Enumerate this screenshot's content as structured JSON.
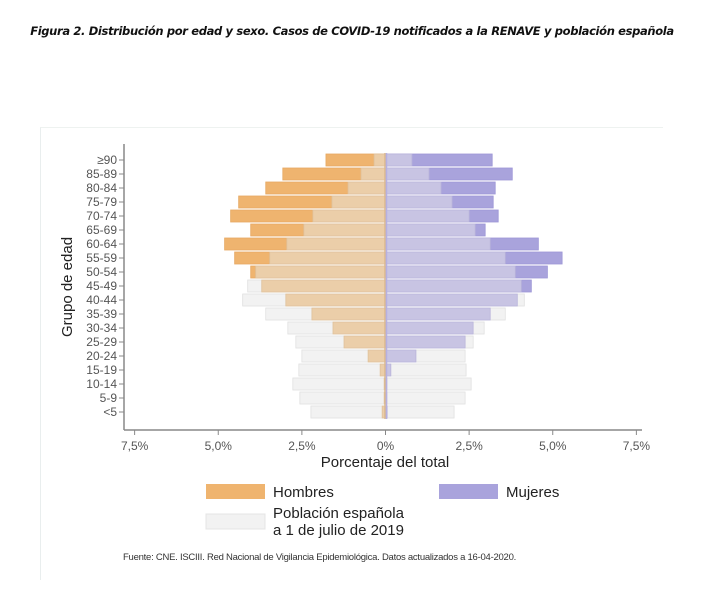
{
  "figure_title": "Figura 2. Distribución por edad y sexo. Casos de COVID-19 notificados a la RENAVE y población española",
  "source_note": "Fuente: CNE. ISCIII. Red Nacional de Vigilancia Epidemiológica. Datos actualizados a 16-04-2020.",
  "colors": {
    "hombres_casos": "#efb46f",
    "hombres_overlap": "#ebcea9",
    "mujeres_casos": "#a9a3dc",
    "mujeres_overlap": "#c8c4e3",
    "poblacion": "#f2f2f2",
    "axis": "#888888"
  },
  "chart_data": {
    "type": "bar",
    "subtype": "population-pyramid",
    "title": "",
    "xlabel": "Porcentaje del total",
    "ylabel": "Grupo de edad",
    "xlim": [
      -7.5,
      7.5
    ],
    "xticks": [
      -7.5,
      -5.0,
      -2.5,
      0,
      2.5,
      5.0,
      7.5
    ],
    "xtick_labels": [
      "7,5%",
      "5,0%",
      "2,5%",
      "0%",
      "2,5%",
      "5,0%",
      "7,5%"
    ],
    "grid": false,
    "categories": [
      "≥90",
      "85-89",
      "80-84",
      "75-79",
      "70-74",
      "65-69",
      "60-64",
      "55-59",
      "50-54",
      "45-49",
      "40-44",
      "35-39",
      "30-34",
      "25-29",
      "20-24",
      "15-19",
      "10-14",
      "5-9",
      "<5"
    ],
    "series": [
      {
        "name": "Hombres (casos COVID-19)",
        "side": "left",
        "values": [
          1.78,
          3.07,
          3.58,
          4.39,
          4.63,
          4.03,
          4.81,
          4.51,
          4.03,
          3.7,
          2.98,
          2.2,
          1.57,
          1.24,
          0.52,
          0.16,
          0.04,
          0.04,
          0.1
        ]
      },
      {
        "name": "Hombres (población española)",
        "side": "left",
        "values": [
          0.34,
          0.73,
          1.12,
          1.6,
          2.17,
          2.44,
          2.95,
          3.46,
          3.88,
          4.12,
          4.27,
          3.58,
          2.92,
          2.68,
          2.5,
          2.59,
          2.77,
          2.56,
          2.23
        ]
      },
      {
        "name": "Mujeres (casos COVID-19)",
        "side": "right",
        "values": [
          3.19,
          3.79,
          3.28,
          3.22,
          3.37,
          2.98,
          4.57,
          5.28,
          4.84,
          4.36,
          3.94,
          3.13,
          2.62,
          2.38,
          0.91,
          0.16,
          0.04,
          0.04,
          0.05
        ]
      },
      {
        "name": "Mujeres (población española)",
        "side": "right",
        "values": [
          0.79,
          1.3,
          1.66,
          1.99,
          2.5,
          2.68,
          3.13,
          3.58,
          3.88,
          4.06,
          4.15,
          3.58,
          2.95,
          2.62,
          2.38,
          2.41,
          2.56,
          2.38,
          2.05
        ]
      }
    ],
    "legend": {
      "placement": "bottom",
      "entries": [
        {
          "label": "Hombres",
          "color": "#efb46f"
        },
        {
          "label": "Mujeres",
          "color": "#a9a3dc"
        },
        {
          "label_lines": [
            "Población española",
            "a 1 de julio de 2019"
          ],
          "color": "#f2f2f2"
        }
      ]
    }
  }
}
